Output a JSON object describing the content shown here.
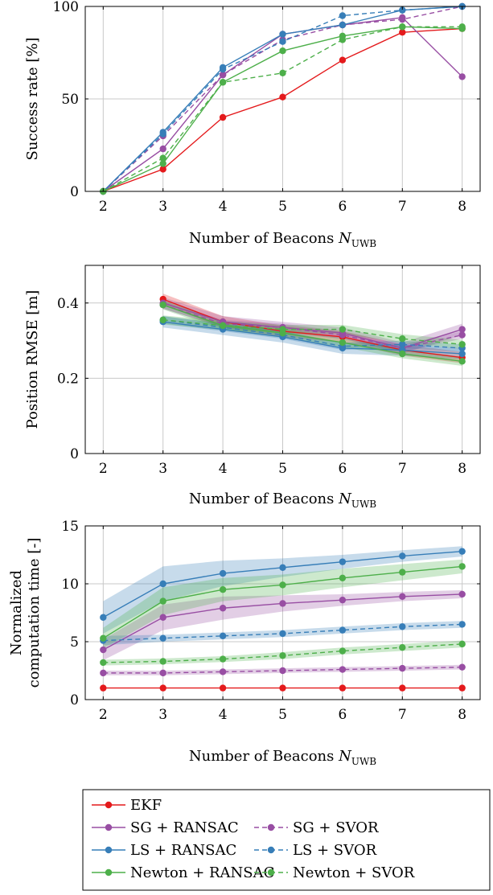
{
  "chart_data": [
    {
      "type": "line",
      "xlabel": "Number of Beacons",
      "xlabel_symbol": "N",
      "xlabel_subscript": "UWB",
      "ylabel_lines": [
        "Success rate [%]"
      ],
      "x": [
        2,
        3,
        4,
        5,
        6,
        7,
        8
      ],
      "xlim": [
        1.7,
        8.3
      ],
      "ylim": [
        0,
        100
      ],
      "yticks": [
        0,
        50,
        100
      ],
      "grid": true,
      "series": [
        {
          "name": "EKF",
          "color": "#e41a1c",
          "dash": false,
          "values": [
            0,
            12,
            40,
            51,
            71,
            86,
            88
          ]
        },
        {
          "name": "SG + RANSAC",
          "color": "#984ea3",
          "dash": false,
          "values": [
            0,
            23,
            63,
            85,
            90,
            94,
            62
          ]
        },
        {
          "name": "SG + SVOR",
          "color": "#984ea3",
          "dash": true,
          "values": [
            0,
            30,
            63,
            82,
            90,
            93,
            100
          ]
        },
        {
          "name": "LS + RANSAC",
          "color": "#377eb8",
          "dash": false,
          "values": [
            0,
            32,
            67,
            85,
            90,
            98,
            100
          ]
        },
        {
          "name": "LS + SVOR",
          "color": "#377eb8",
          "dash": true,
          "values": [
            0,
            31,
            66,
            81,
            95,
            98,
            100
          ]
        },
        {
          "name": "Newton + RANSAC",
          "color": "#4daf4a",
          "dash": false,
          "values": [
            0,
            15,
            59,
            76,
            84,
            89,
            88
          ]
        },
        {
          "name": "Newton + SVOR",
          "color": "#4daf4a",
          "dash": true,
          "values": [
            0,
            18,
            59,
            64,
            82,
            89,
            89
          ]
        }
      ]
    },
    {
      "type": "line",
      "xlabel": "Number of Beacons",
      "xlabel_symbol": "N",
      "xlabel_subscript": "UWB",
      "ylabel_lines": [
        "Position RMSE [m]"
      ],
      "x": [
        3,
        4,
        5,
        6,
        7,
        8
      ],
      "xlim": [
        1.7,
        8.3
      ],
      "xticks": [
        2,
        3,
        4,
        5,
        6,
        7,
        8
      ],
      "ylim": [
        0,
        0.5
      ],
      "yticks": [
        0,
        0.2,
        0.4
      ],
      "grid": true,
      "series": [
        {
          "name": "EKF",
          "color": "#e41a1c",
          "dash": false,
          "values": [
            0.41,
            0.35,
            0.325,
            0.31,
            0.275,
            0.255
          ],
          "band": 0.015
        },
        {
          "name": "SG + RANSAC",
          "color": "#984ea3",
          "dash": false,
          "values": [
            0.4,
            0.35,
            0.335,
            0.32,
            0.28,
            0.33
          ],
          "band": 0.015
        },
        {
          "name": "SG + SVOR",
          "color": "#984ea3",
          "dash": true,
          "values": [
            0.395,
            0.345,
            0.335,
            0.315,
            0.28,
            0.315
          ],
          "band": 0.01
        },
        {
          "name": "LS + RANSAC",
          "color": "#377eb8",
          "dash": false,
          "values": [
            0.35,
            0.33,
            0.31,
            0.28,
            0.275,
            0.265
          ],
          "band": 0.015
        },
        {
          "name": "LS + SVOR",
          "color": "#377eb8",
          "dash": true,
          "values": [
            0.355,
            0.335,
            0.315,
            0.285,
            0.29,
            0.28
          ],
          "band": 0.01
        },
        {
          "name": "Newton + RANSAC",
          "color": "#4daf4a",
          "dash": false,
          "values": [
            0.395,
            0.34,
            0.32,
            0.295,
            0.265,
            0.245
          ],
          "band": 0.012
        },
        {
          "name": "Newton + SVOR",
          "color": "#4daf4a",
          "dash": true,
          "values": [
            0.355,
            0.34,
            0.33,
            0.33,
            0.305,
            0.29
          ],
          "band": 0.012
        }
      ]
    },
    {
      "type": "line",
      "xlabel": "Number of Beacons",
      "xlabel_symbol": "N",
      "xlabel_subscript": "UWB",
      "ylabel_lines": [
        "Normalized",
        "computation time [-]"
      ],
      "x": [
        2,
        3,
        4,
        5,
        6,
        7,
        8
      ],
      "xlim": [
        1.7,
        8.3
      ],
      "ylim": [
        0,
        15
      ],
      "yticks": [
        0,
        5,
        10,
        15
      ],
      "grid": true,
      "series": [
        {
          "name": "EKF",
          "color": "#e41a1c",
          "dash": false,
          "values": [
            1,
            1,
            1,
            1,
            1,
            1,
            1
          ],
          "band": [
            0,
            0,
            0,
            0,
            0,
            0,
            0
          ]
        },
        {
          "name": "SG + RANSAC",
          "color": "#984ea3",
          "dash": false,
          "values": [
            4.3,
            7.1,
            7.9,
            8.3,
            8.6,
            8.9,
            9.1
          ],
          "band": [
            0.9,
            1.1,
            1.0,
            0.7,
            0.5,
            0.4,
            0.35
          ]
        },
        {
          "name": "SG + SVOR",
          "color": "#984ea3",
          "dash": true,
          "values": [
            2.3,
            2.3,
            2.4,
            2.5,
            2.6,
            2.7,
            2.8
          ],
          "band": [
            0.2,
            0.2,
            0.2,
            0.2,
            0.2,
            0.2,
            0.2
          ]
        },
        {
          "name": "LS + RANSAC",
          "color": "#377eb8",
          "dash": false,
          "values": [
            7.1,
            10.0,
            10.9,
            11.4,
            11.9,
            12.4,
            12.8
          ],
          "band": [
            1.4,
            1.5,
            1.1,
            0.8,
            0.6,
            0.5,
            0.45
          ]
        },
        {
          "name": "LS + SVOR",
          "color": "#377eb8",
          "dash": true,
          "values": [
            5.1,
            5.3,
            5.5,
            5.7,
            6.0,
            6.3,
            6.5
          ],
          "band": [
            0.4,
            0.3,
            0.3,
            0.3,
            0.3,
            0.3,
            0.3
          ]
        },
        {
          "name": "Newton + RANSAC",
          "color": "#4daf4a",
          "dash": false,
          "values": [
            5.3,
            8.5,
            9.5,
            9.9,
            10.5,
            11.0,
            11.5
          ],
          "band": [
            0.9,
            1.2,
            1.0,
            0.9,
            0.8,
            0.7,
            0.6
          ]
        },
        {
          "name": "Newton + SVOR",
          "color": "#4daf4a",
          "dash": true,
          "values": [
            3.2,
            3.3,
            3.5,
            3.8,
            4.2,
            4.5,
            4.8
          ],
          "band": [
            0.25,
            0.25,
            0.25,
            0.3,
            0.3,
            0.3,
            0.3
          ]
        }
      ]
    }
  ],
  "legend": {
    "placement": "bottom",
    "rows": [
      [
        {
          "label": "EKF",
          "color": "#e41a1c",
          "dash": false
        }
      ],
      [
        {
          "label": "SG + RANSAC",
          "color": "#984ea3",
          "dash": false
        },
        {
          "label": "SG + SVOR",
          "color": "#984ea3",
          "dash": true
        }
      ],
      [
        {
          "label": "LS + RANSAC",
          "color": "#377eb8",
          "dash": false
        },
        {
          "label": "LS + SVOR",
          "color": "#377eb8",
          "dash": true
        }
      ],
      [
        {
          "label": "Newton + RANSAC",
          "color": "#4daf4a",
          "dash": false
        },
        {
          "label": "Newton + SVOR",
          "color": "#4daf4a",
          "dash": true
        }
      ]
    ]
  }
}
